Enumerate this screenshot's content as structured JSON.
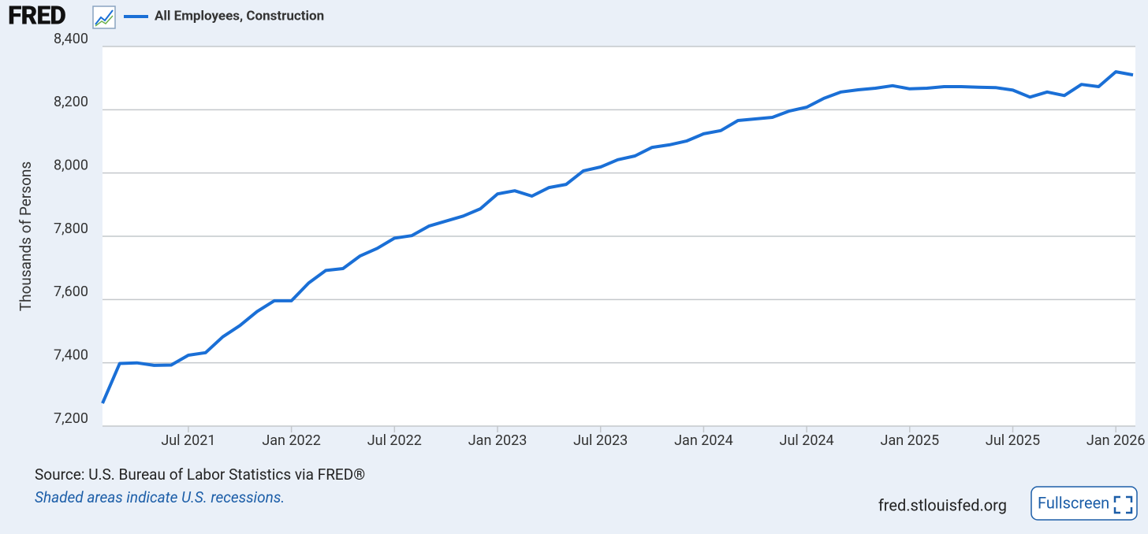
{
  "chart_data": {
    "type": "line",
    "logo": "FRED",
    "y_label": "Thousands of Persons",
    "source": "Source: U.S. Bureau of Labor Statistics via FRED®",
    "note": "Shaded areas indicate U.S. recessions.",
    "site": "fred.stlouisfed.org",
    "button": "Fullscreen",
    "grid": true,
    "x": [
      "2021-02",
      "2021-03",
      "2021-04",
      "2021-05",
      "2021-06",
      "2021-07",
      "2021-08",
      "2021-09",
      "2021-10",
      "2021-11",
      "2021-12",
      "2022-01",
      "2022-02",
      "2022-03",
      "2022-04",
      "2022-05",
      "2022-06",
      "2022-07",
      "2022-08",
      "2022-09",
      "2022-10",
      "2022-11",
      "2022-12",
      "2023-01",
      "2023-02",
      "2023-03",
      "2023-04",
      "2023-05",
      "2023-06",
      "2023-07",
      "2023-08",
      "2023-09",
      "2023-10",
      "2023-11",
      "2023-12",
      "2024-01",
      "2024-02",
      "2024-03",
      "2024-04",
      "2024-05",
      "2024-06",
      "2024-07",
      "2024-08",
      "2024-09",
      "2024-10",
      "2024-11",
      "2024-12",
      "2025-01",
      "2025-02",
      "2025-03",
      "2025-04",
      "2025-05",
      "2025-06",
      "2025-07",
      "2025-08",
      "2025-09",
      "2025-10",
      "2025-11",
      "2025-12",
      "2026-01",
      "2026-02"
    ],
    "series": [
      {
        "name": "All Employees, Construction",
        "color": "#1a6fd6",
        "values": [
          7272,
          7398,
          7400,
          7392,
          7393,
          7424,
          7432,
          7482,
          7518,
          7562,
          7596,
          7596,
          7652,
          7692,
          7698,
          7738,
          7762,
          7794,
          7802,
          7832,
          7848,
          7864,
          7887,
          7934,
          7944,
          7927,
          7954,
          7964,
          8007,
          8019,
          8042,
          8054,
          8081,
          8089,
          8101,
          8124,
          8134,
          8166,
          8171,
          8176,
          8196,
          8208,
          8236,
          8256,
          8263,
          8268,
          8276,
          8266,
          8268,
          8273,
          8273,
          8271,
          8270,
          8262,
          8240,
          8256,
          8245,
          8280,
          8273,
          8320,
          8310
        ]
      }
    ],
    "xlim": [
      "2021-02",
      "2026-02"
    ],
    "xticks": [
      {
        "value": "2021-07",
        "label": "Jul 2021"
      },
      {
        "value": "2022-01",
        "label": "Jan 2022"
      },
      {
        "value": "2022-07",
        "label": "Jul 2022"
      },
      {
        "value": "2023-01",
        "label": "Jan 2023"
      },
      {
        "value": "2023-07",
        "label": "Jul 2023"
      },
      {
        "value": "2024-01",
        "label": "Jan 2024"
      },
      {
        "value": "2024-07",
        "label": "Jul 2024"
      },
      {
        "value": "2025-01",
        "label": "Jan 2025"
      },
      {
        "value": "2025-07",
        "label": "Jul 2025"
      },
      {
        "value": "2026-01",
        "label": "Jan 2026"
      }
    ],
    "ylim": [
      7200,
      8400
    ],
    "yticks": [
      {
        "value": 7200,
        "label": "7,200"
      },
      {
        "value": 7400,
        "label": "7,400"
      },
      {
        "value": 7600,
        "label": "7,600"
      },
      {
        "value": 7800,
        "label": "7,800"
      },
      {
        "value": 8000,
        "label": "8,000"
      },
      {
        "value": 8200,
        "label": "8,200"
      },
      {
        "value": 8400,
        "label": "8,400"
      }
    ]
  }
}
